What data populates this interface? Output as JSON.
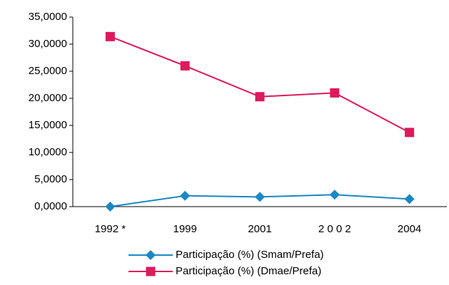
{
  "chart_data": {
    "type": "line",
    "categories": [
      "1992 *",
      "1999",
      "2001",
      "2 0 0 2",
      "2004"
    ],
    "series": [
      {
        "name": "Participação (%) (Smam/Prefa)",
        "color": "#1b87c4",
        "marker": "diamond",
        "values": [
          0,
          2.0,
          1.8,
          2.2,
          1.4
        ]
      },
      {
        "name": "Participação (%) (Dmae/Prefa)",
        "color": "#dd1a5a",
        "marker": "square",
        "values": [
          31.4,
          26.0,
          20.3,
          21.0,
          13.7
        ]
      }
    ],
    "ylim": [
      0,
      35
    ],
    "yticks": [
      {
        "value": 0,
        "label": "0,0000"
      },
      {
        "value": 5,
        "label": "5,0000"
      },
      {
        "value": 10,
        "label": "10,0000"
      },
      {
        "value": 15,
        "label": "15,0000"
      },
      {
        "value": 20,
        "label": "20,0000"
      },
      {
        "value": 25,
        "label": "25,0000"
      },
      {
        "value": 30,
        "label": "30,0000"
      },
      {
        "value": 35,
        "label": "35,0000"
      }
    ],
    "grid": false,
    "legend": "bottom"
  }
}
